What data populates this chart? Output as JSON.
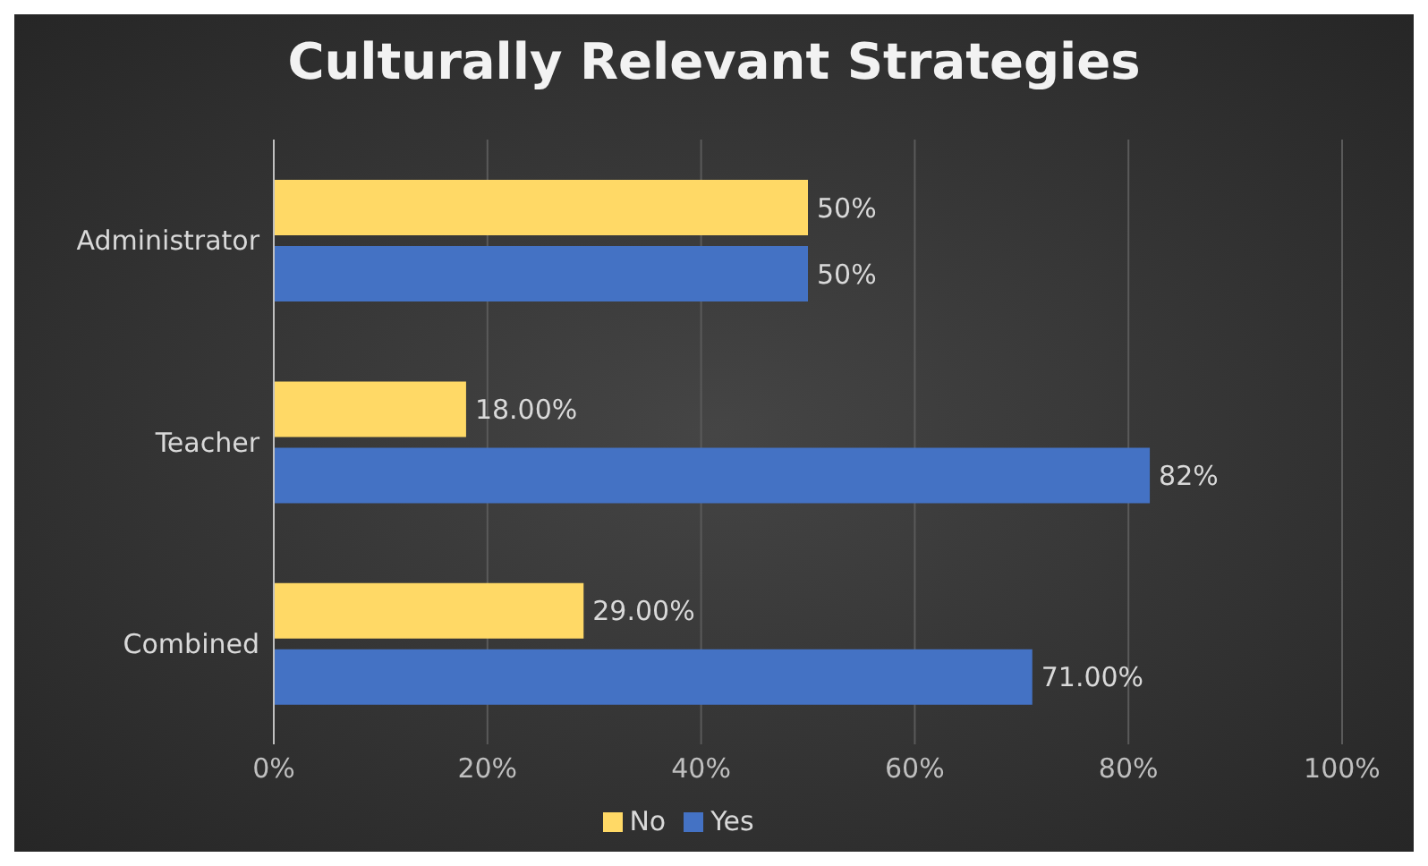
{
  "chart_data": {
    "type": "bar",
    "orientation": "horizontal",
    "title": "Culturally Relevant Strategies",
    "categories": [
      "Administrator",
      "Teacher",
      "Combined"
    ],
    "series": [
      {
        "name": "No",
        "color": "#ffd966",
        "values": [
          50,
          18,
          29
        ],
        "value_labels": [
          "50%",
          "18.00%",
          "29.00%"
        ]
      },
      {
        "name": "Yes",
        "color": "#4472c4",
        "values": [
          50,
          82,
          71
        ],
        "value_labels": [
          "50%",
          "82%",
          "71.00%"
        ]
      }
    ],
    "xlim": [
      0,
      100
    ],
    "xticks": [
      {
        "value": 0,
        "label": "0%"
      },
      {
        "value": 20,
        "label": "20%"
      },
      {
        "value": 40,
        "label": "40%"
      },
      {
        "value": 60,
        "label": "60%"
      },
      {
        "value": 80,
        "label": "80%"
      },
      {
        "value": 100,
        "label": "100%"
      }
    ],
    "grid": "x",
    "legend": "bottom"
  }
}
